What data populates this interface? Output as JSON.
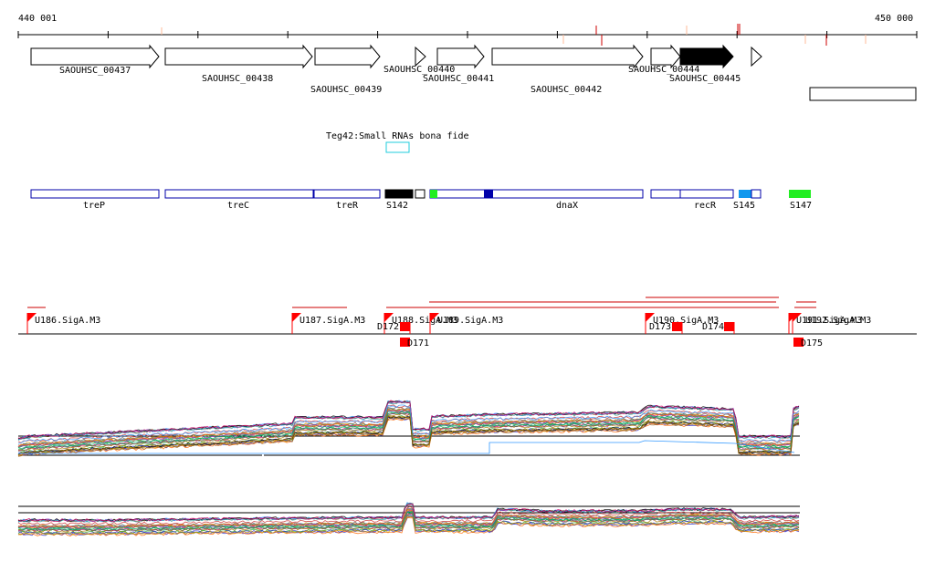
{
  "ruler": {
    "start_label": "440 001",
    "end_label": "450 000"
  },
  "genes": [
    {
      "id": "SAOUHSC_00437",
      "label": "SAOUHSC_00437",
      "filled": false
    },
    {
      "id": "SAOUHSC_00438",
      "label": "SAOUHSC_00438",
      "filled": false
    },
    {
      "id": "SAOUHSC_00439",
      "label": "SAOUHSC_00439",
      "filled": false
    },
    {
      "id": "SAOUHSC_00440",
      "label": "SAOUHSC_00440",
      "filled": false
    },
    {
      "id": "SAOUHSC_00441",
      "label": "SAOUHSC_00441",
      "filled": false
    },
    {
      "id": "SAOUHSC_00442",
      "label": "SAOUHSC_00442",
      "filled": false
    },
    {
      "id": "SAOUHSC_00444",
      "label": "SAOUHSC_00444",
      "filled": false
    },
    {
      "id": "SAOUHSC_00445",
      "label": "SAOUHSC_00445",
      "filled": true
    }
  ],
  "srna": {
    "label": "Teg42:Small RNAs bona fide",
    "color": "#22ccdd"
  },
  "segments": [
    {
      "label": "treP"
    },
    {
      "label": "treC"
    },
    {
      "label": "treR"
    },
    {
      "label": "S142"
    },
    {
      "label": "dnaX"
    },
    {
      "label": "recR"
    },
    {
      "label": "S145"
    },
    {
      "label": "S147"
    }
  ],
  "promoters": [
    {
      "label": "U186.SigA.M3"
    },
    {
      "label": "U187.SigA.M3"
    },
    {
      "label": "U188.SigA.M3"
    },
    {
      "label": "U189.SigA.M3"
    },
    {
      "label": "U190.SigA.M3"
    },
    {
      "label": "U191.SigA.M3"
    },
    {
      "label": "U192.SigA.M3"
    }
  ],
  "downstream_markers": [
    {
      "label": "D171"
    },
    {
      "label": "D172"
    },
    {
      "label": "D173"
    },
    {
      "label": "D174"
    },
    {
      "label": "D175"
    }
  ],
  "colors": {
    "gene_outline": "#000000",
    "segment_outline": "#0000aa",
    "segment_dark": "#0000aa",
    "segment_black": "#000000",
    "segment_green": "#22ee22",
    "segment_cyan": "#1199ee",
    "promoter_red": "#ff0000",
    "ruler_tick_red": "#cc0000",
    "ruler_tick_orange": "#ffbb99"
  }
}
